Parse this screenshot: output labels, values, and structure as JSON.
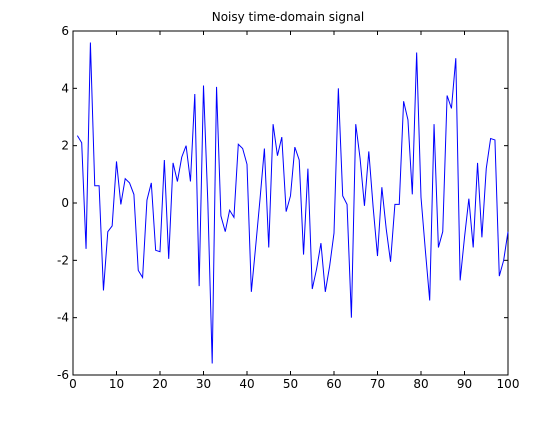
{
  "chart_data": {
    "type": "line",
    "title": "Noisy time-domain signal",
    "xlabel": "",
    "ylabel": "",
    "xlim": [
      0,
      100
    ],
    "ylim": [
      -6,
      6
    ],
    "xticks": [
      0,
      10,
      20,
      30,
      40,
      50,
      60,
      70,
      80,
      90,
      100
    ],
    "yticks": [
      -6,
      -4,
      -2,
      0,
      2,
      4,
      6
    ],
    "xtick_labels": [
      "0",
      "10",
      "20",
      "30",
      "40",
      "50",
      "60",
      "70",
      "80",
      "90",
      "100"
    ],
    "ytick_labels": [
      "-6",
      "-4",
      "-2",
      "0",
      "2",
      "4",
      "6"
    ],
    "grid": false,
    "line_color": "#0000ff",
    "x": [
      1,
      2,
      3,
      4,
      5,
      6,
      7,
      8,
      9,
      10,
      11,
      12,
      13,
      14,
      15,
      16,
      17,
      18,
      19,
      20,
      21,
      22,
      23,
      24,
      25,
      26,
      27,
      28,
      29,
      30,
      31,
      32,
      33,
      34,
      35,
      36,
      37,
      38,
      39,
      40,
      41,
      42,
      43,
      44,
      45,
      46,
      47,
      48,
      49,
      50,
      51,
      52,
      53,
      54,
      55,
      56,
      57,
      58,
      59,
      60,
      61,
      62,
      63,
      64,
      65,
      66,
      67,
      68,
      69,
      70,
      71,
      72,
      73,
      74,
      75,
      76,
      77,
      78,
      79,
      80,
      81,
      82,
      83,
      84,
      85,
      86,
      87,
      88,
      89,
      90,
      91,
      92,
      93,
      94,
      95,
      96,
      97,
      98,
      99,
      100
    ],
    "series": [
      {
        "values": [
          2.35,
          2.1,
          -1.6,
          5.6,
          0.6,
          0.6,
          -3.05,
          -1.0,
          -0.8,
          1.45,
          -0.05,
          0.85,
          0.7,
          0.3,
          -2.35,
          -2.6,
          0.1,
          0.7,
          -1.65,
          -1.7,
          1.5,
          -1.95,
          1.4,
          0.75,
          1.6,
          2.0,
          0.75,
          3.8,
          -2.9,
          4.1,
          0.0,
          -5.6,
          4.05,
          -0.45,
          -1.0,
          -0.25,
          -0.5,
          2.05,
          1.9,
          1.35,
          -3.1,
          -1.5,
          0.15,
          1.9,
          -1.55,
          2.75,
          1.65,
          2.3,
          -0.3,
          0.25,
          1.95,
          1.5,
          -1.8,
          1.2,
          -3.0,
          -2.3,
          -1.4,
          -3.1,
          -2.2,
          -1.05,
          4.0,
          0.25,
          -0.05,
          -4.0,
          2.75,
          1.55,
          -0.1,
          1.8,
          -0.15,
          -1.85,
          0.55,
          -0.9,
          -2.05,
          -0.05,
          -0.05,
          3.55,
          2.9,
          0.3,
          5.25,
          0.2,
          -1.65,
          -3.4,
          2.75,
          -1.55,
          -1.0,
          3.75,
          3.3,
          5.05,
          -2.7,
          -1.2,
          0.15,
          -1.55,
          1.4,
          -1.2,
          1.2,
          2.25,
          2.2,
          -2.55,
          -2.0,
          -1.0
        ]
      }
    ]
  }
}
